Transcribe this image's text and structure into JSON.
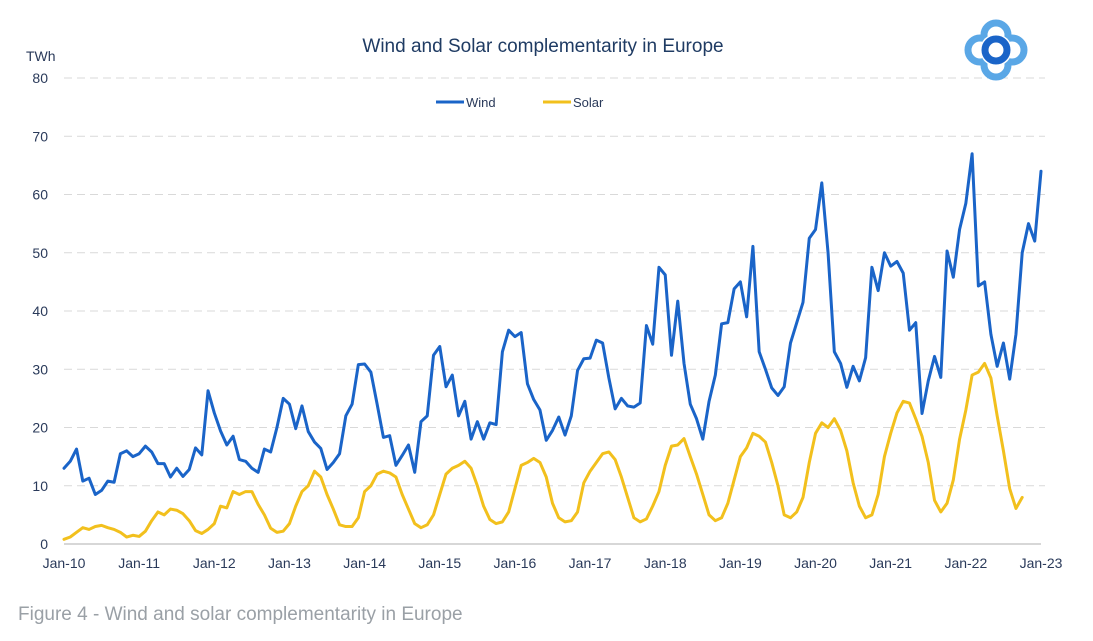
{
  "caption": "Figure 4 - Wind and solar complementarity in Europe",
  "colors": {
    "wind": "#1a64c8",
    "solar": "#f2c01d",
    "title": "#1f3b63",
    "grid": "#d9d9d9",
    "axis_text": "#2a3a5a",
    "logo": "#5aa7e6"
  },
  "logo": {
    "icon": "circle-flower-logo-icon"
  },
  "chart_data": {
    "type": "line",
    "title": "Wind and Solar complementarity in Europe",
    "ylabel": "TWh",
    "xlabel": "",
    "ylim": [
      0,
      80
    ],
    "yticks": [
      0,
      10,
      20,
      30,
      40,
      50,
      60,
      70,
      80
    ],
    "grid": true,
    "legend": "top-center",
    "x_start": "Jan-10",
    "x_end": "Jan-23",
    "x_unit": "month",
    "xtick_labels": [
      "Jan-10",
      "Jan-11",
      "Jan-12",
      "Jan-13",
      "Jan-14",
      "Jan-15",
      "Jan-16",
      "Jan-17",
      "Jan-18",
      "Jan-19",
      "Jan-20",
      "Jan-21",
      "Jan-22",
      "Jan-23"
    ],
    "series": [
      {
        "name": "Wind",
        "color": "#1a64c8",
        "values": [
          13.0,
          14.2,
          16.3,
          10.8,
          11.3,
          8.5,
          9.2,
          10.8,
          10.6,
          15.5,
          16.0,
          15.0,
          15.5,
          16.8,
          15.8,
          13.8,
          13.8,
          11.5,
          13.0,
          11.6,
          12.8,
          16.5,
          15.3,
          26.3,
          22.5,
          19.4,
          17.0,
          18.5,
          14.5,
          14.2,
          13.0,
          12.3,
          16.3,
          15.8,
          20.0,
          25.0,
          24.0,
          19.8,
          23.7,
          19.3,
          17.5,
          16.4,
          12.8,
          14.0,
          15.5,
          22.0,
          24.0,
          30.8,
          30.9,
          29.5,
          24.0,
          18.3,
          18.6,
          13.5,
          15.2,
          17.0,
          12.3,
          21.0,
          22.0,
          32.4,
          33.9,
          27.0,
          29.0,
          22.0,
          24.5,
          18.0,
          21.0,
          18.0,
          20.8,
          20.5,
          33.0,
          36.7,
          35.6,
          36.3,
          27.5,
          24.8,
          23.0,
          17.8,
          19.5,
          21.8,
          18.7,
          22.0,
          29.8,
          31.8,
          31.9,
          35.0,
          34.5,
          28.5,
          23.2,
          25.0,
          23.7,
          23.5,
          24.2,
          37.5,
          34.3,
          47.5,
          46.2,
          32.4,
          41.7,
          31.0,
          24.0,
          21.5,
          18.0,
          24.5,
          29.0,
          37.8,
          38.0,
          43.8,
          45.0,
          39.0,
          51.1,
          33.0,
          30.0,
          26.8,
          25.5,
          27.0,
          34.5,
          38.0,
          41.5,
          52.5,
          54.0,
          62.0,
          50.0,
          33.0,
          31.0,
          26.9,
          30.5,
          28.0,
          32.0,
          47.5,
          43.5,
          50.0,
          47.7,
          48.5,
          46.5,
          36.7,
          38.0,
          22.4,
          28.0,
          32.2,
          28.6,
          50.3,
          45.8,
          54.0,
          58.5,
          67.0,
          44.3,
          45.0,
          36.0,
          30.5,
          34.5,
          28.3,
          36.0,
          50.0,
          55.0,
          52.0,
          64.0
        ]
      },
      {
        "name": "Solar",
        "color": "#f2c01d",
        "values": [
          0.8,
          1.2,
          2.0,
          2.8,
          2.5,
          3.0,
          3.2,
          2.8,
          2.5,
          2.0,
          1.2,
          1.5,
          1.3,
          2.2,
          4.0,
          5.5,
          5.0,
          6.0,
          5.8,
          5.2,
          4.0,
          2.3,
          1.8,
          2.5,
          3.5,
          6.5,
          6.2,
          9.0,
          8.5,
          9.0,
          9.0,
          6.8,
          5.0,
          2.7,
          2.0,
          2.2,
          3.5,
          6.5,
          9.0,
          10.0,
          12.5,
          11.5,
          8.5,
          6.0,
          3.3,
          3.0,
          3.0,
          4.5,
          9.0,
          10.0,
          12.0,
          12.5,
          12.2,
          11.5,
          8.5,
          6.0,
          3.5,
          2.8,
          3.3,
          5.0,
          8.5,
          12.0,
          13.0,
          13.5,
          14.2,
          13.0,
          10.0,
          6.5,
          4.2,
          3.5,
          3.8,
          5.5,
          9.5,
          13.5,
          14.0,
          14.7,
          14.0,
          11.5,
          7.0,
          4.5,
          3.8,
          4.0,
          5.5,
          10.5,
          12.5,
          14.0,
          15.5,
          15.8,
          14.5,
          11.5,
          8.0,
          4.5,
          3.8,
          4.3,
          6.5,
          9.0,
          13.5,
          16.8,
          17.0,
          18.1,
          15.0,
          12.0,
          8.5,
          5.0,
          4.0,
          4.5,
          7.0,
          11.0,
          15.0,
          16.5,
          19.0,
          18.5,
          17.5,
          14.0,
          10.0,
          5.0,
          4.5,
          5.5,
          8.0,
          14.0,
          19.0,
          20.8,
          20.0,
          21.5,
          19.5,
          16.0,
          10.5,
          6.5,
          4.5,
          5.0,
          8.5,
          15.0,
          19.0,
          22.5,
          24.5,
          24.2,
          21.5,
          18.5,
          14.0,
          7.5,
          5.5,
          7.0,
          11.0,
          18.0,
          23.0,
          29.0,
          29.5,
          31.0,
          28.5,
          22.0,
          16.0,
          9.5,
          6.1,
          8.0,
          null,
          null,
          null
        ]
      }
    ]
  }
}
